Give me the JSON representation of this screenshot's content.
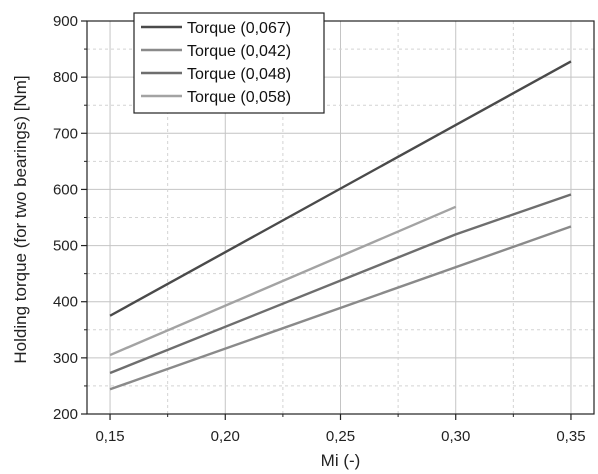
{
  "chart_data": {
    "type": "line",
    "xlabel": "Mi (-)",
    "ylabel": "Holding torque (for two bearings) [Nm]",
    "xlim": [
      0.14,
      0.36
    ],
    "ylim": [
      200,
      900
    ],
    "x_ticks": [
      0.15,
      0.2,
      0.25,
      0.3,
      0.35
    ],
    "x_tick_labels": [
      "0,15",
      "0,20",
      "0,25",
      "0,30",
      "0,35"
    ],
    "y_ticks": [
      200,
      300,
      400,
      500,
      600,
      700,
      800,
      900
    ],
    "y_tick_labels": [
      "200",
      "300",
      "400",
      "500",
      "600",
      "700",
      "800",
      "900"
    ],
    "grid": true,
    "legend_position": "top-left",
    "series": [
      {
        "name": "Torque (0,067)",
        "color": "#4a4a4a",
        "x": [
          0.15,
          0.35
        ],
        "y": [
          375,
          828
        ]
      },
      {
        "name": "Torque (0,042)",
        "color": "#8a8a8a",
        "x": [
          0.15,
          0.35
        ],
        "y": [
          244,
          534
        ]
      },
      {
        "name": "Torque (0,048)",
        "color": "#6e6e6e",
        "x": [
          0.15,
          0.3,
          0.35
        ],
        "y": [
          273,
          520,
          591
        ]
      },
      {
        "name": "Torque (0,058)",
        "color": "#a3a3a3",
        "x": [
          0.15,
          0.3
        ],
        "y": [
          305,
          569
        ]
      }
    ]
  }
}
